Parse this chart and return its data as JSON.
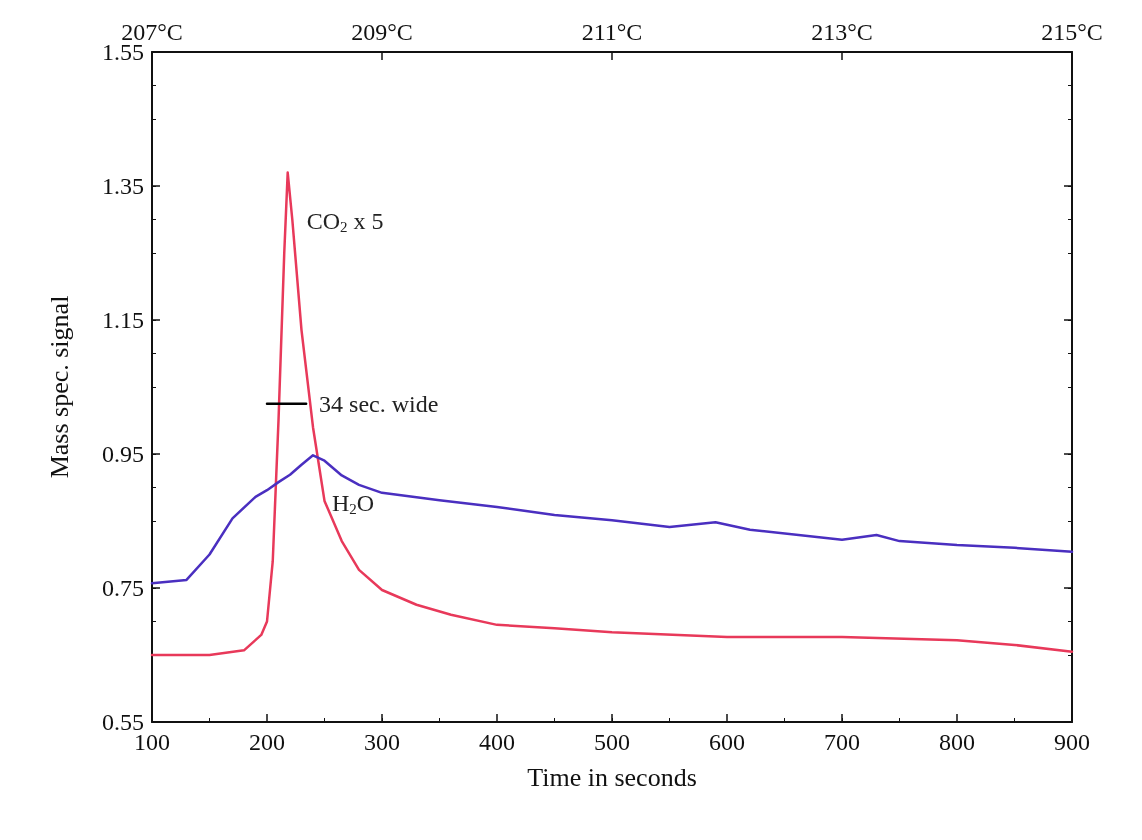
{
  "chart_data": {
    "type": "line",
    "xlabel": "Time in seconds",
    "ylabel": "Mass spec. signal",
    "xlim": [
      100,
      900
    ],
    "xticks": [
      100,
      200,
      300,
      400,
      500,
      600,
      700,
      800,
      900
    ],
    "ylim": [
      0.55,
      1.55
    ],
    "yticks": [
      0.55,
      0.75,
      0.95,
      1.15,
      1.35,
      1.55
    ],
    "x2lim": [
      207,
      215
    ],
    "x2ticks": [
      {
        "value": 207,
        "label": "207°C"
      },
      {
        "value": 209,
        "label": "209°C"
      },
      {
        "value": 211,
        "label": "211°C"
      },
      {
        "value": 213,
        "label": "213°C"
      },
      {
        "value": 215,
        "label": "215°C"
      }
    ],
    "grid": false,
    "legend": false,
    "marker": "none",
    "line_style": "solid",
    "series": [
      {
        "name": "CO$_{2}$ x 5",
        "color": "#e8395a",
        "x": [
          100,
          150,
          180,
          195,
          200,
          205,
          210,
          215,
          218,
          222,
          230,
          240,
          250,
          265,
          280,
          300,
          330,
          360,
          400,
          450,
          500,
          600,
          700,
          800,
          850,
          900
        ],
        "values": [
          0.65,
          0.65,
          0.657,
          0.68,
          0.7,
          0.79,
          1.0,
          1.25,
          1.37,
          1.3,
          1.135,
          0.99,
          0.88,
          0.82,
          0.777,
          0.747,
          0.725,
          0.71,
          0.695,
          0.69,
          0.684,
          0.677,
          0.677,
          0.672,
          0.665,
          0.655
        ]
      },
      {
        "name": "H$_{2}$O",
        "color": "#4a2fc0",
        "x": [
          100,
          130,
          150,
          170,
          190,
          200,
          210,
          220,
          230,
          240,
          250,
          265,
          280,
          300,
          350,
          400,
          450,
          500,
          550,
          590,
          620,
          700,
          730,
          750,
          800,
          850,
          900
        ],
        "values": [
          0.757,
          0.762,
          0.8,
          0.854,
          0.886,
          0.896,
          0.908,
          0.919,
          0.934,
          0.948,
          0.94,
          0.918,
          0.904,
          0.892,
          0.881,
          0.871,
          0.859,
          0.851,
          0.841,
          0.848,
          0.837,
          0.822,
          0.829,
          0.82,
          0.814,
          0.81,
          0.804
        ]
      },
      {
        "name": "34 sec. wide",
        "color": "#000000",
        "x": [
          200,
          234
        ],
        "values": [
          1.025,
          1.025
        ]
      }
    ]
  }
}
